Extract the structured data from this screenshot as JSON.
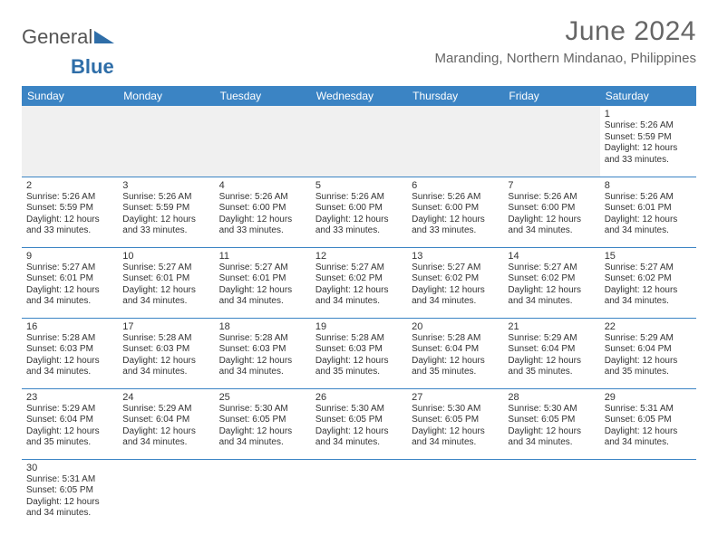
{
  "logo": {
    "text_general": "General",
    "text_blue": "Blue"
  },
  "title": "June 2024",
  "location": "Maranding, Northern Mindanao, Philippines",
  "colors": {
    "header_bg": "#3b84c4",
    "header_text": "#ffffff",
    "cell_border": "#3b84c4",
    "logo_blue": "#2f6ea8",
    "logo_gray": "#555555",
    "title_color": "#666666",
    "body_text": "#333333",
    "empty_cell_bg": "#f0f0f0",
    "page_bg": "#ffffff"
  },
  "fonts": {
    "title_size_pt": 30,
    "location_size_pt": 15,
    "weekday_size_pt": 12,
    "daynum_size_pt": 11,
    "body_size_pt": 10
  },
  "weekdays": [
    "Sunday",
    "Monday",
    "Tuesday",
    "Wednesday",
    "Thursday",
    "Friday",
    "Saturday"
  ],
  "weeks": [
    [
      null,
      null,
      null,
      null,
      null,
      null,
      {
        "day": "1",
        "sunrise": "Sunrise: 5:26 AM",
        "sunset": "Sunset: 5:59 PM",
        "daylight1": "Daylight: 12 hours",
        "daylight2": "and 33 minutes."
      }
    ],
    [
      {
        "day": "2",
        "sunrise": "Sunrise: 5:26 AM",
        "sunset": "Sunset: 5:59 PM",
        "daylight1": "Daylight: 12 hours",
        "daylight2": "and 33 minutes."
      },
      {
        "day": "3",
        "sunrise": "Sunrise: 5:26 AM",
        "sunset": "Sunset: 5:59 PM",
        "daylight1": "Daylight: 12 hours",
        "daylight2": "and 33 minutes."
      },
      {
        "day": "4",
        "sunrise": "Sunrise: 5:26 AM",
        "sunset": "Sunset: 6:00 PM",
        "daylight1": "Daylight: 12 hours",
        "daylight2": "and 33 minutes."
      },
      {
        "day": "5",
        "sunrise": "Sunrise: 5:26 AM",
        "sunset": "Sunset: 6:00 PM",
        "daylight1": "Daylight: 12 hours",
        "daylight2": "and 33 minutes."
      },
      {
        "day": "6",
        "sunrise": "Sunrise: 5:26 AM",
        "sunset": "Sunset: 6:00 PM",
        "daylight1": "Daylight: 12 hours",
        "daylight2": "and 33 minutes."
      },
      {
        "day": "7",
        "sunrise": "Sunrise: 5:26 AM",
        "sunset": "Sunset: 6:00 PM",
        "daylight1": "Daylight: 12 hours",
        "daylight2": "and 34 minutes."
      },
      {
        "day": "8",
        "sunrise": "Sunrise: 5:26 AM",
        "sunset": "Sunset: 6:01 PM",
        "daylight1": "Daylight: 12 hours",
        "daylight2": "and 34 minutes."
      }
    ],
    [
      {
        "day": "9",
        "sunrise": "Sunrise: 5:27 AM",
        "sunset": "Sunset: 6:01 PM",
        "daylight1": "Daylight: 12 hours",
        "daylight2": "and 34 minutes."
      },
      {
        "day": "10",
        "sunrise": "Sunrise: 5:27 AM",
        "sunset": "Sunset: 6:01 PM",
        "daylight1": "Daylight: 12 hours",
        "daylight2": "and 34 minutes."
      },
      {
        "day": "11",
        "sunrise": "Sunrise: 5:27 AM",
        "sunset": "Sunset: 6:01 PM",
        "daylight1": "Daylight: 12 hours",
        "daylight2": "and 34 minutes."
      },
      {
        "day": "12",
        "sunrise": "Sunrise: 5:27 AM",
        "sunset": "Sunset: 6:02 PM",
        "daylight1": "Daylight: 12 hours",
        "daylight2": "and 34 minutes."
      },
      {
        "day": "13",
        "sunrise": "Sunrise: 5:27 AM",
        "sunset": "Sunset: 6:02 PM",
        "daylight1": "Daylight: 12 hours",
        "daylight2": "and 34 minutes."
      },
      {
        "day": "14",
        "sunrise": "Sunrise: 5:27 AM",
        "sunset": "Sunset: 6:02 PM",
        "daylight1": "Daylight: 12 hours",
        "daylight2": "and 34 minutes."
      },
      {
        "day": "15",
        "sunrise": "Sunrise: 5:27 AM",
        "sunset": "Sunset: 6:02 PM",
        "daylight1": "Daylight: 12 hours",
        "daylight2": "and 34 minutes."
      }
    ],
    [
      {
        "day": "16",
        "sunrise": "Sunrise: 5:28 AM",
        "sunset": "Sunset: 6:03 PM",
        "daylight1": "Daylight: 12 hours",
        "daylight2": "and 34 minutes."
      },
      {
        "day": "17",
        "sunrise": "Sunrise: 5:28 AM",
        "sunset": "Sunset: 6:03 PM",
        "daylight1": "Daylight: 12 hours",
        "daylight2": "and 34 minutes."
      },
      {
        "day": "18",
        "sunrise": "Sunrise: 5:28 AM",
        "sunset": "Sunset: 6:03 PM",
        "daylight1": "Daylight: 12 hours",
        "daylight2": "and 34 minutes."
      },
      {
        "day": "19",
        "sunrise": "Sunrise: 5:28 AM",
        "sunset": "Sunset: 6:03 PM",
        "daylight1": "Daylight: 12 hours",
        "daylight2": "and 35 minutes."
      },
      {
        "day": "20",
        "sunrise": "Sunrise: 5:28 AM",
        "sunset": "Sunset: 6:04 PM",
        "daylight1": "Daylight: 12 hours",
        "daylight2": "and 35 minutes."
      },
      {
        "day": "21",
        "sunrise": "Sunrise: 5:29 AM",
        "sunset": "Sunset: 6:04 PM",
        "daylight1": "Daylight: 12 hours",
        "daylight2": "and 35 minutes."
      },
      {
        "day": "22",
        "sunrise": "Sunrise: 5:29 AM",
        "sunset": "Sunset: 6:04 PM",
        "daylight1": "Daylight: 12 hours",
        "daylight2": "and 35 minutes."
      }
    ],
    [
      {
        "day": "23",
        "sunrise": "Sunrise: 5:29 AM",
        "sunset": "Sunset: 6:04 PM",
        "daylight1": "Daylight: 12 hours",
        "daylight2": "and 35 minutes."
      },
      {
        "day": "24",
        "sunrise": "Sunrise: 5:29 AM",
        "sunset": "Sunset: 6:04 PM",
        "daylight1": "Daylight: 12 hours",
        "daylight2": "and 34 minutes."
      },
      {
        "day": "25",
        "sunrise": "Sunrise: 5:30 AM",
        "sunset": "Sunset: 6:05 PM",
        "daylight1": "Daylight: 12 hours",
        "daylight2": "and 34 minutes."
      },
      {
        "day": "26",
        "sunrise": "Sunrise: 5:30 AM",
        "sunset": "Sunset: 6:05 PM",
        "daylight1": "Daylight: 12 hours",
        "daylight2": "and 34 minutes."
      },
      {
        "day": "27",
        "sunrise": "Sunrise: 5:30 AM",
        "sunset": "Sunset: 6:05 PM",
        "daylight1": "Daylight: 12 hours",
        "daylight2": "and 34 minutes."
      },
      {
        "day": "28",
        "sunrise": "Sunrise: 5:30 AM",
        "sunset": "Sunset: 6:05 PM",
        "daylight1": "Daylight: 12 hours",
        "daylight2": "and 34 minutes."
      },
      {
        "day": "29",
        "sunrise": "Sunrise: 5:31 AM",
        "sunset": "Sunset: 6:05 PM",
        "daylight1": "Daylight: 12 hours",
        "daylight2": "and 34 minutes."
      }
    ],
    [
      {
        "day": "30",
        "sunrise": "Sunrise: 5:31 AM",
        "sunset": "Sunset: 6:05 PM",
        "daylight1": "Daylight: 12 hours",
        "daylight2": "and 34 minutes."
      },
      null,
      null,
      null,
      null,
      null,
      null
    ]
  ]
}
